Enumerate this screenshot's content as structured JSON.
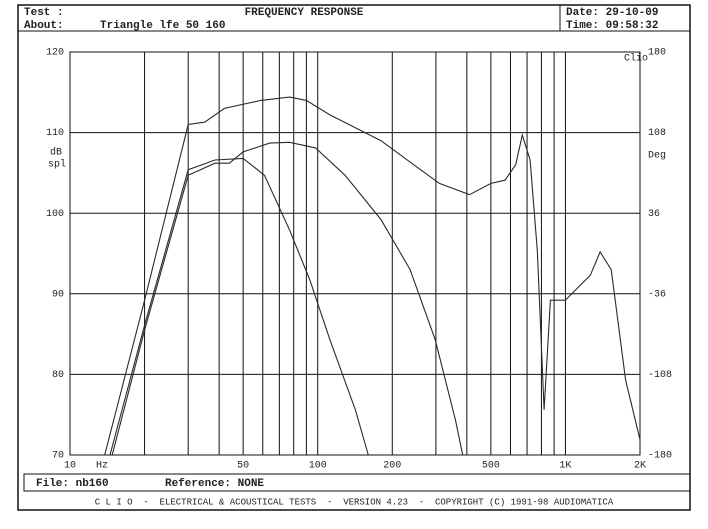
{
  "header": {
    "test_label": "Test :",
    "about_label": "About:",
    "about": "Triangle lfe 50 160",
    "title": "FREQUENCY RESPONSE",
    "date": "Date: 29-10-09",
    "time": "Time: 09:58:32"
  },
  "chart_data": {
    "type": "line",
    "xscale": "log",
    "grid": true,
    "corner_label": "Clio",
    "xlabel": "Hz",
    "ylabel": [
      "dB",
      "spl"
    ],
    "y2label": "Deg",
    "xlim": [
      10,
      2000
    ],
    "xticks": [
      10,
      {
        "value": 20,
        "label": null
      },
      {
        "value": 30,
        "label": null
      },
      {
        "value": 40,
        "label": null
      },
      50,
      {
        "value": 60,
        "label": null
      },
      {
        "value": 70,
        "label": null
      },
      {
        "value": 80,
        "label": null
      },
      {
        "value": 90,
        "label": null
      },
      100,
      200,
      {
        "value": 300,
        "label": null
      },
      {
        "value": 400,
        "label": null
      },
      500,
      {
        "value": 600,
        "label": null
      },
      {
        "value": 700,
        "label": null
      },
      {
        "value": 800,
        "label": null
      },
      {
        "value": 900,
        "label": null
      },
      {
        "value": 1000,
        "label": "1K"
      },
      {
        "value": 2000,
        "label": "2K"
      }
    ],
    "ylim": [
      70,
      120
    ],
    "yticks": [
      70,
      80,
      90,
      100,
      110,
      120
    ],
    "y2lim": [
      -180,
      180
    ],
    "y2ticks": [
      -180,
      -108,
      -36,
      36,
      108,
      180
    ],
    "series": [
      {
        "color": "#2a2a2a",
        "x": [
          13.8,
          20,
          30,
          35,
          42,
          59,
          77,
          90,
          112,
          180,
          260,
          310,
          410,
          500,
          570,
          630,
          670,
          720,
          770,
          820,
          870,
          1000,
          1100,
          1260,
          1380,
          1530,
          1750,
          2000
        ],
        "values": [
          70,
          89.2,
          111,
          111.3,
          113,
          114,
          114.4,
          114,
          112.2,
          109,
          105.4,
          103.7,
          102.3,
          103.7,
          104.1,
          106,
          109.7,
          106.6,
          95.4,
          75.6,
          89.2,
          89.2,
          90.5,
          92.3,
          95.2,
          93,
          79.3,
          71.9
        ]
      },
      {
        "color": "#2a2a2a",
        "x": [
          14.8,
          20,
          30,
          38.5,
          44,
          50,
          64,
          77,
          98,
          129,
          180,
          236,
          298,
          360,
          385
        ],
        "values": [
          70,
          85.5,
          104.7,
          106.2,
          106.2,
          107.6,
          108.7,
          108.8,
          108.1,
          104.7,
          99.2,
          93,
          84.3,
          74.3,
          70
        ]
      },
      {
        "color": "#2a2a2a",
        "x": [
          14.5,
          20,
          30,
          38.5,
          50,
          61,
          77,
          93,
          112,
          142,
          160
        ],
        "values": [
          70,
          86.1,
          105.4,
          106.6,
          106.8,
          104.7,
          97.9,
          91.7,
          84.3,
          75.6,
          70
        ]
      }
    ]
  },
  "footer": {
    "file": "File: nb160",
    "reference": "Reference: NONE",
    "credits": "C L I O  -  ELECTRICAL & ACOUSTICAL TESTS  -  VERSION 4.23  -  COPYRIGHT (C) 1991-98 AUDIOMATICA"
  }
}
